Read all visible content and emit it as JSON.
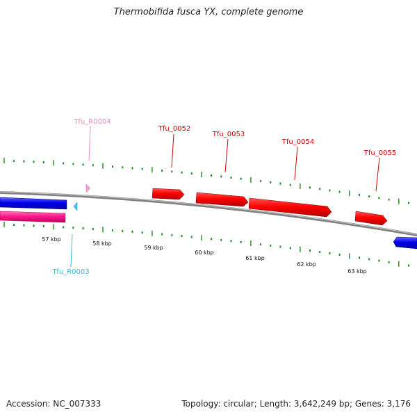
{
  "title": "Thermobifida fusca YX, complete genome",
  "footer": {
    "accession": "Accession: NC_007333",
    "summary": "Topology: circular; Length: 3,642,249 bp; Genes: 3,176"
  },
  "map": {
    "kbp_labels": [
      "57 kbp",
      "58 kbp",
      "59 kbp",
      "60 kbp",
      "61 kbp",
      "62 kbp",
      "63 kbp"
    ],
    "features": [
      {
        "id": "Tfu_R0004",
        "strand": "plus",
        "kind": "rna",
        "color": "#e88cc0"
      },
      {
        "id": "Tfu_0052",
        "strand": "plus",
        "kind": "cds",
        "color": "#cc0000"
      },
      {
        "id": "Tfu_0053",
        "strand": "plus",
        "kind": "cds",
        "color": "#cc0000"
      },
      {
        "id": "Tfu_0054",
        "strand": "plus",
        "kind": "cds",
        "color": "#cc0000"
      },
      {
        "id": "Tfu_0055",
        "strand": "plus",
        "kind": "cds",
        "color": "#cc0000"
      },
      {
        "id": "Tfu_R0003",
        "strand": "minus",
        "kind": "rna",
        "color": "#33bbdd"
      }
    ]
  },
  "colors": {
    "backbone": "#808080",
    "tick": "#1a8c1a",
    "cds_plus": "#ff0000",
    "cds_minus_blue": "#0000ee",
    "cds_minus_pink": "#ff1a8c",
    "rna_plus": "#f0a0d0",
    "rna_minus": "#40c0f0"
  }
}
